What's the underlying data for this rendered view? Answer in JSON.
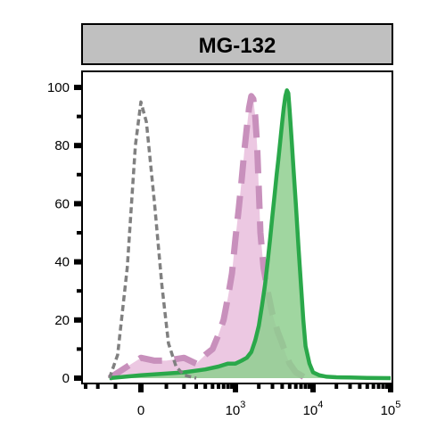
{
  "chart_data": {
    "type": "area",
    "title": "MG-132",
    "xlabel": "",
    "ylabel": "",
    "ylim": [
      0,
      100
    ],
    "xscale": "biexponential",
    "xlim": [
      -400,
      100000
    ],
    "y_ticks": [
      0,
      20,
      40,
      60,
      80,
      100
    ],
    "x_ticks": [
      {
        "value": 0,
        "base": "0",
        "exp": ""
      },
      {
        "value": 1000,
        "base": "10",
        "exp": "3"
      },
      {
        "value": 10000,
        "base": "10",
        "exp": "4"
      },
      {
        "value": 100000,
        "base": "10",
        "exp": "5"
      }
    ],
    "grid": false,
    "legend": "none",
    "colors": {
      "header_fill": "#c0c0c0",
      "gray_dashed": "#808080",
      "pink_fill": "#ecc8e2",
      "pink_line": "#c890bc",
      "green_fill": "#8fcf8f",
      "green_line": "#2aa84a"
    },
    "series": [
      {
        "style": "gray-dashed-line",
        "fill": false,
        "x": [
          -130,
          -90,
          -50,
          -20,
          0,
          20,
          50,
          80,
          110,
          150,
          200,
          250,
          300
        ],
        "y": [
          0,
          8,
          38,
          80,
          95,
          88,
          60,
          32,
          12,
          4,
          1,
          0.5,
          0
        ]
      },
      {
        "style": "pink-dashed-filled",
        "fill": true,
        "x": [
          -130,
          -50,
          0,
          50,
          100,
          200,
          300,
          400,
          500,
          600,
          700,
          800,
          900,
          1000,
          1100,
          1200,
          1300,
          1400,
          1500,
          1600,
          1700,
          1800,
          1900,
          2000,
          2100,
          2300,
          2600,
          3000,
          3500,
          4000,
          4500,
          5000,
          6000,
          7000,
          8000
        ],
        "y": [
          0,
          4,
          7,
          6,
          6,
          7,
          5,
          8,
          10,
          15,
          20,
          28,
          36,
          48,
          58,
          68,
          78,
          86,
          93,
          97,
          96,
          90,
          80,
          65,
          50,
          38,
          30,
          22,
          16,
          12,
          8,
          5,
          2,
          1,
          0
        ]
      },
      {
        "style": "green-solid-filled",
        "fill": true,
        "x": [
          -130,
          0,
          200,
          400,
          600,
          800,
          1000,
          1200,
          1400,
          1600,
          1800,
          2000,
          2200,
          2400,
          2600,
          2800,
          3000,
          3200,
          3400,
          3600,
          3800,
          4000,
          4200,
          4400,
          4600,
          4800,
          5000,
          5300,
          5600,
          6000,
          6500,
          7000,
          7500,
          8000,
          9000,
          10000,
          12000,
          15000,
          20000,
          30000,
          50000,
          100000
        ],
        "y": [
          0,
          1,
          2,
          3,
          4,
          5,
          5,
          6,
          7,
          9,
          13,
          18,
          25,
          32,
          40,
          48,
          56,
          63,
          70,
          76,
          82,
          88,
          93,
          97,
          99,
          98,
          92,
          82,
          72,
          60,
          45,
          32,
          20,
          11,
          5,
          2,
          1,
          0.5,
          0.3,
          0.2,
          0.1,
          0
        ]
      }
    ]
  }
}
